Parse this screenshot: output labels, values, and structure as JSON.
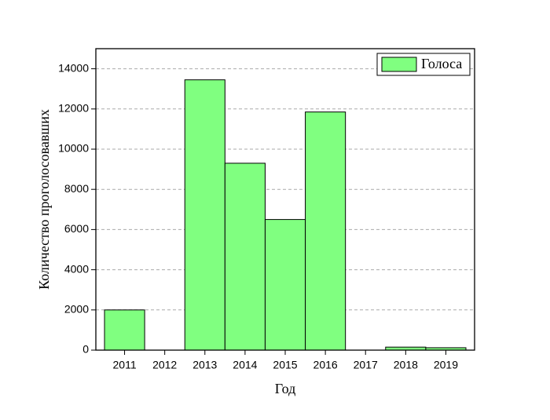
{
  "chart_data": {
    "type": "bar",
    "x_label": "Год",
    "y_label": "Количество проголосовавших",
    "categories": [
      "2011",
      "2012",
      "2013",
      "2014",
      "2015",
      "2016",
      "2017",
      "2018",
      "2019"
    ],
    "series": [
      {
        "name": "Голоса",
        "color": "#80ff80",
        "values": [
          2000,
          0,
          13450,
          9300,
          6500,
          11850,
          0,
          150,
          120
        ]
      }
    ],
    "ylim": [
      0,
      15000
    ],
    "yticks": [
      0,
      2000,
      4000,
      6000,
      8000,
      10000,
      12000,
      14000
    ],
    "grid": true,
    "legend": "upper right"
  }
}
